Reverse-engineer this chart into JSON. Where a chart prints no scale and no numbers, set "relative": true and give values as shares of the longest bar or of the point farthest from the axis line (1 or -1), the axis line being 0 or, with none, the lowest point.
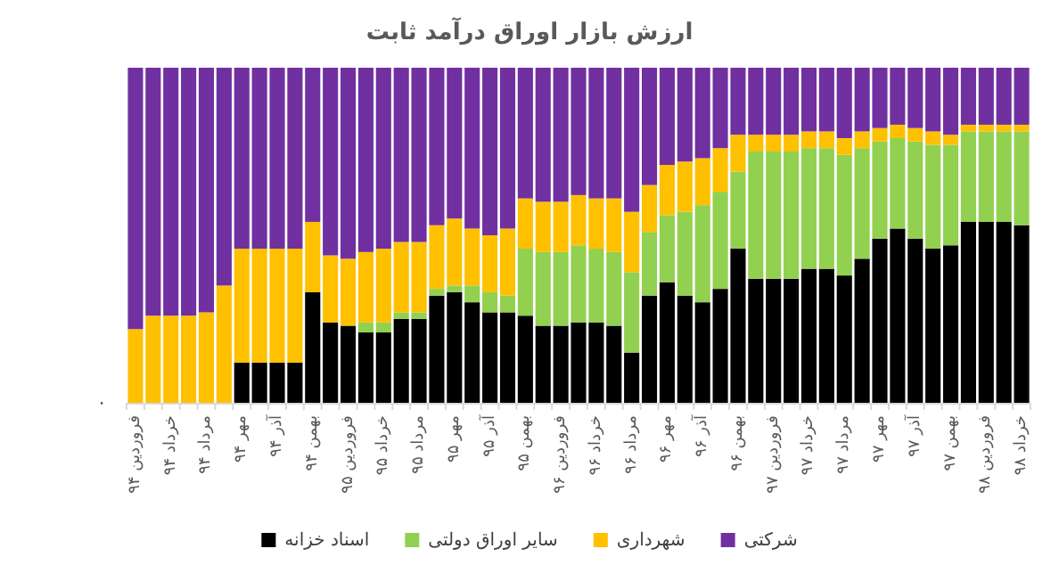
{
  "chart_data": {
    "type": "bar",
    "title": "ارزش بازار اوراق درآمد ثابت",
    "stacked": true,
    "relative": true,
    "legend": "bottom",
    "annotations": [
      "۰"
    ],
    "categories": [
      "فروردین ۹۴",
      null,
      "خرداد ۹۴",
      null,
      "مرداد ۹۴",
      null,
      "مهر ۹۴",
      null,
      "آذر ۹۴",
      null,
      "بهمن ۹۴",
      null,
      "فروردین ۹۵",
      null,
      "خرداد ۹۵",
      null,
      "مرداد ۹۵",
      null,
      "مهر ۹۵",
      null,
      "آذر ۹۵",
      null,
      "بهمن ۹۵",
      null,
      "فروردین ۹۶",
      null,
      "خرداد ۹۶",
      null,
      "مرداد ۹۶",
      null,
      "مهر ۹۶",
      null,
      "آذر ۹۶",
      null,
      "بهمن ۹۶",
      null,
      "فروردین ۹۷",
      null,
      "خرداد ۹۷",
      null,
      "مرداد ۹۷",
      null,
      "مهر ۹۷",
      null,
      "آذر ۹۷",
      null,
      "بهمن ۹۷",
      null,
      "فروردین ۹۸",
      null,
      "خرداد ۹۸"
    ],
    "series": [
      {
        "name": "اسناد خزانه",
        "color": "#000000",
        "values": [
          0,
          0,
          0,
          0,
          0,
          0,
          0.12,
          0.12,
          0.12,
          0.12,
          0.33,
          0.24,
          0.23,
          0.21,
          0.21,
          0.25,
          0.25,
          0.32,
          0.33,
          0.3,
          0.27,
          0.27,
          0.26,
          0.23,
          0.23,
          0.24,
          0.24,
          0.23,
          0.15,
          0.32,
          0.36,
          0.32,
          0.3,
          0.34,
          0.46,
          0.37,
          0.37,
          0.37,
          0.4,
          0.4,
          0.38,
          0.43,
          0.49,
          0.52,
          0.49,
          0.46,
          0.47,
          0.54,
          0.54,
          0.54,
          0.53
        ]
      },
      {
        "name": "سایر اوراق دولتی",
        "color": "#92d050",
        "values": [
          0,
          0,
          0,
          0,
          0,
          0,
          0,
          0,
          0,
          0,
          0,
          0,
          0,
          0.03,
          0.03,
          0.02,
          0.02,
          0.02,
          0.02,
          0.05,
          0.06,
          0.05,
          0.2,
          0.22,
          0.22,
          0.23,
          0.22,
          0.22,
          0.24,
          0.19,
          0.2,
          0.25,
          0.29,
          0.29,
          0.23,
          0.38,
          0.38,
          0.38,
          0.36,
          0.36,
          0.36,
          0.33,
          0.29,
          0.27,
          0.29,
          0.31,
          0.3,
          0.27,
          0.27,
          0.27,
          0.28
        ]
      },
      {
        "name": "شهرداری",
        "color": "#ffc000",
        "values": [
          0.22,
          0.26,
          0.26,
          0.26,
          0.27,
          0.35,
          0.34,
          0.34,
          0.34,
          0.34,
          0.21,
          0.2,
          0.2,
          0.21,
          0.22,
          0.21,
          0.21,
          0.19,
          0.2,
          0.17,
          0.17,
          0.2,
          0.15,
          0.15,
          0.15,
          0.15,
          0.15,
          0.16,
          0.18,
          0.14,
          0.15,
          0.15,
          0.14,
          0.13,
          0.11,
          0.05,
          0.05,
          0.05,
          0.05,
          0.05,
          0.05,
          0.05,
          0.04,
          0.04,
          0.04,
          0.04,
          0.03,
          0.02,
          0.02,
          0.02,
          0.02
        ]
      },
      {
        "name": "شرکتی",
        "color": "#7030a0",
        "values": [
          0.78,
          0.74,
          0.74,
          0.74,
          0.73,
          0.65,
          0.54,
          0.54,
          0.54,
          0.54,
          0.46,
          0.56,
          0.57,
          0.55,
          0.54,
          0.52,
          0.52,
          0.47,
          0.45,
          0.48,
          0.5,
          0.48,
          0.39,
          0.4,
          0.4,
          0.38,
          0.39,
          0.39,
          0.43,
          0.35,
          0.29,
          0.28,
          0.27,
          0.24,
          0.2,
          0.2,
          0.2,
          0.2,
          0.19,
          0.19,
          0.21,
          0.19,
          0.18,
          0.17,
          0.18,
          0.19,
          0.2,
          0.17,
          0.17,
          0.17,
          0.17
        ]
      }
    ]
  }
}
